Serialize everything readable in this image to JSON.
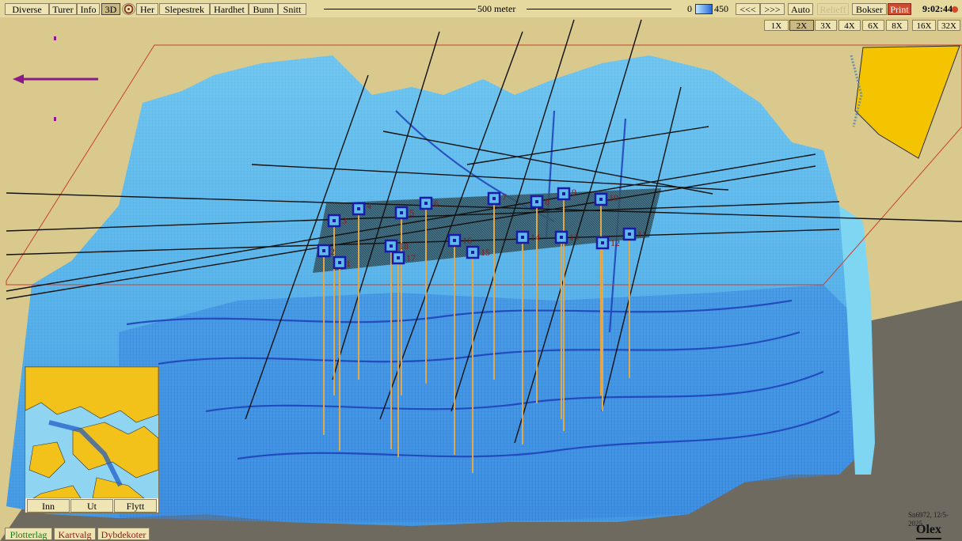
{
  "toolbar": {
    "menu": [
      "Diverse",
      "Turer",
      "Info",
      "3D",
      "Her",
      "Slepestrek",
      "Hardhet",
      "Bunn",
      "Snitt"
    ],
    "scale_label": "500 meter",
    "depth_min": "0",
    "depth_max": "450",
    "nav_back": "<<<",
    "nav_forward": ">>>",
    "auto": "Auto",
    "relieff": "Relieff",
    "bokser": "Bokser",
    "print": "Print",
    "time": "9:02:44"
  },
  "zoom": {
    "options": [
      "1X",
      "2X",
      "3X",
      "4X",
      "6X",
      "8X",
      "16X",
      "32X"
    ],
    "selected": "2X"
  },
  "markers": [
    "1",
    "2",
    "3",
    "4",
    "5",
    "6",
    "7",
    "8",
    "9",
    "10",
    "11",
    "12",
    "13",
    "14",
    "15",
    "16",
    "17",
    "18"
  ],
  "minimap": {
    "buttons": [
      "Inn",
      "Ut",
      "Flytt"
    ]
  },
  "bottom_tabs": [
    "Plotterlag",
    "Kartvalg",
    "Dybdekoter"
  ],
  "footer": {
    "info": "Sn6972, 12/5-2025",
    "brand": "Olex"
  },
  "colors": {
    "terrain_light": "#6fc7ee",
    "terrain_mid": "#3d94e0",
    "terrain_deep": "#1f4fc2",
    "panel_bg": "#d9c98c",
    "marker_line": "#e0a84a",
    "marker_box": "#1a1aa8",
    "area_overlay": "#2b4a58",
    "land": "#f5c400",
    "accent_red": "#d24a2c"
  },
  "icons": {
    "here_icon": "circle-target-icon",
    "direction": "left-arrow-icon"
  }
}
